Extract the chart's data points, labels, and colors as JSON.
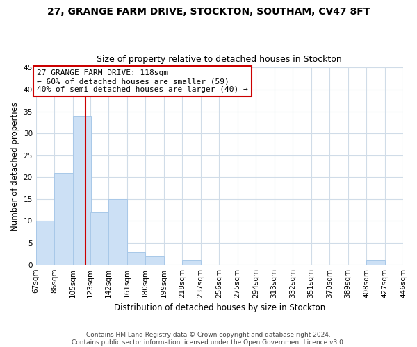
{
  "title": "27, GRANGE FARM DRIVE, STOCKTON, SOUTHAM, CV47 8FT",
  "subtitle": "Size of property relative to detached houses in Stockton",
  "xlabel": "Distribution of detached houses by size in Stockton",
  "ylabel": "Number of detached properties",
  "bin_edges": [
    67,
    86,
    105,
    123,
    142,
    161,
    180,
    199,
    218,
    237,
    256,
    275,
    294,
    313,
    332,
    351,
    370,
    389,
    408,
    427,
    446
  ],
  "bin_labels": [
    "67sqm",
    "86sqm",
    "105sqm",
    "123sqm",
    "142sqm",
    "161sqm",
    "180sqm",
    "199sqm",
    "218sqm",
    "237sqm",
    "256sqm",
    "275sqm",
    "294sqm",
    "313sqm",
    "332sqm",
    "351sqm",
    "370sqm",
    "389sqm",
    "408sqm",
    "427sqm",
    "446sqm"
  ],
  "counts": [
    10,
    21,
    34,
    12,
    15,
    3,
    2,
    0,
    1,
    0,
    0,
    0,
    0,
    0,
    0,
    0,
    0,
    0,
    1,
    0
  ],
  "bar_color": "#cce0f5",
  "bar_edge_color": "#a8c8e8",
  "property_size": 118,
  "property_line_color": "#cc0000",
  "annotation_text": "27 GRANGE FARM DRIVE: 118sqm\n← 60% of detached houses are smaller (59)\n40% of semi-detached houses are larger (40) →",
  "annotation_box_color": "#ffffff",
  "annotation_box_edge_color": "#cc0000",
  "ylim": [
    0,
    45
  ],
  "yticks": [
    0,
    5,
    10,
    15,
    20,
    25,
    30,
    35,
    40,
    45
  ],
  "grid_color": "#d0dce8",
  "footer_line1": "Contains HM Land Registry data © Crown copyright and database right 2024.",
  "footer_line2": "Contains public sector information licensed under the Open Government Licence v3.0.",
  "background_color": "#ffffff",
  "title_fontsize": 10,
  "subtitle_fontsize": 9,
  "axis_label_fontsize": 8.5,
  "tick_fontsize": 7.5,
  "annotation_fontsize": 8,
  "footer_fontsize": 6.5
}
